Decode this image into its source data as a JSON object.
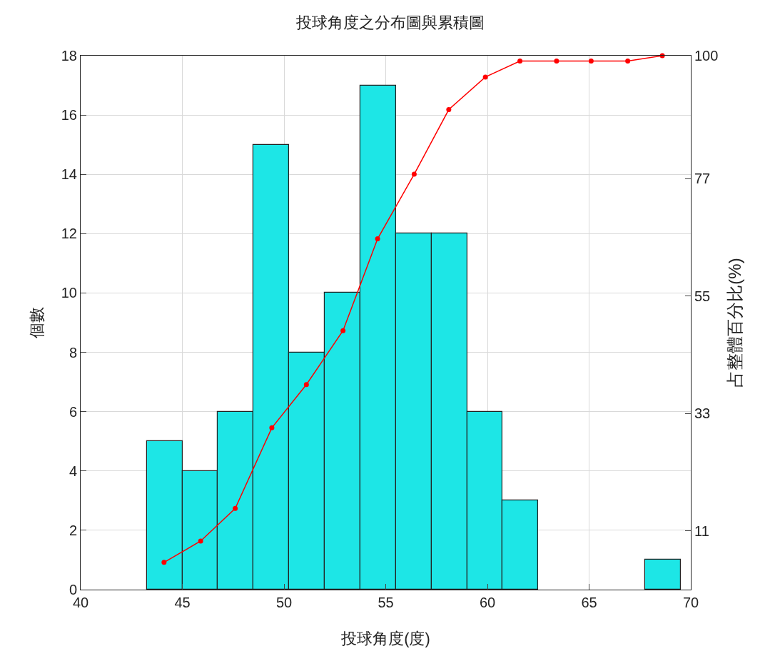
{
  "chart_data": {
    "type": "histogram",
    "title": "投球角度之分布圖與累積圖",
    "xlabel": "投球角度(度)",
    "ylabel": "個數",
    "y2label": "占整體百分比(%)",
    "bins": [
      43.25,
      45.0,
      46.75,
      48.5,
      50.25,
      52.0,
      53.75,
      55.5,
      57.25,
      59.0,
      60.75,
      62.5,
      64.25,
      66.0,
      67.75,
      69.5
    ],
    "values": [
      5,
      4,
      6,
      15,
      8,
      10,
      17,
      12,
      12,
      6,
      3,
      0,
      0,
      0,
      1
    ],
    "color": "#1de6e6",
    "series": [
      {
        "type": "line",
        "axis": "y2",
        "color": "#ff0000",
        "marker": "circle",
        "line_style": "solid",
        "x": [
          44.1,
          45.9,
          47.6,
          49.4,
          51.1,
          52.9,
          54.6,
          56.4,
          58.1,
          59.9,
          61.6,
          63.4,
          65.1,
          66.9,
          68.6
        ],
        "values": [
          5.1,
          9.1,
          15.2,
          30.3,
          38.4,
          48.5,
          65.7,
          77.8,
          89.9,
          96.0,
          99.0,
          99.0,
          99.0,
          99.0,
          100
        ]
      }
    ],
    "xlim": [
      40,
      70
    ],
    "xticks": [
      40,
      45,
      50,
      55,
      60,
      65,
      70
    ],
    "ylim": [
      0,
      18
    ],
    "yticks": [
      0,
      2,
      4,
      6,
      8,
      10,
      12,
      14,
      16,
      18
    ],
    "y2lim": [
      0,
      100
    ],
    "y2ticks": [
      11,
      33,
      55,
      77,
      100
    ],
    "grid": true
  }
}
